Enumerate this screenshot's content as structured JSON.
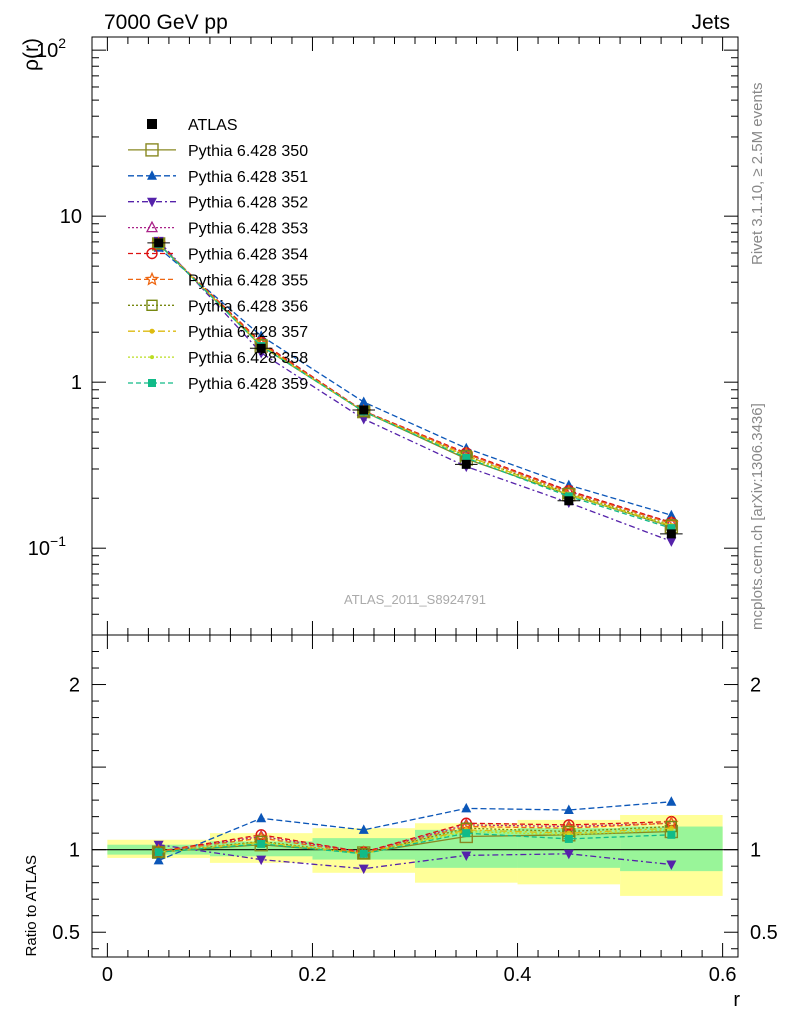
{
  "header": {
    "left": "7000 GeV pp",
    "right": "Jets",
    "side_top": "Rivet 3.1.10, ≥ 2.5M events",
    "side_bottom": "mcplots.cern.ch [arXiv:1306.3436]",
    "watermark": "ATLAS_2011_S8924791"
  },
  "chart_data": {
    "type": "line",
    "x": [
      0.05,
      0.15,
      0.25,
      0.35,
      0.45,
      0.55
    ],
    "x_edges": [
      0.0,
      0.1,
      0.2,
      0.3,
      0.4,
      0.5,
      0.6
    ],
    "xlim": [
      -0.015,
      0.615
    ],
    "xlabel": "r",
    "x_ticks": [
      "0",
      "0.2",
      "0.4",
      "0.6"
    ],
    "upper": {
      "ylabel": "ρ(r)",
      "yscale": "log",
      "ylim": [
        0.03,
        120
      ],
      "y_ticks": [
        {
          "base": "10",
          "exp": "−1",
          "value": 0.1
        },
        {
          "base": "1",
          "exp": "",
          "value": 1
        },
        {
          "base": "10",
          "exp": "",
          "value": 10
        },
        {
          "base": "10",
          "exp": "2",
          "value": 100
        }
      ]
    },
    "lower": {
      "ylabel": "Ratio to ATLAS",
      "ylim": [
        0.35,
        2.3
      ],
      "y_ticks": [
        "0.5",
        "1",
        "2"
      ],
      "y_tick_values": [
        0.5,
        1,
        2
      ],
      "band_yellow": [
        [
          0.95,
          1.06
        ],
        [
          0.92,
          1.1
        ],
        [
          0.86,
          1.13
        ],
        [
          0.8,
          1.16
        ],
        [
          0.79,
          1.18
        ],
        [
          0.72,
          1.21
        ]
      ],
      "band_green": [
        [
          0.97,
          1.03
        ],
        [
          0.96,
          1.05
        ],
        [
          0.94,
          1.07
        ],
        [
          0.89,
          1.12
        ],
        [
          0.89,
          1.13
        ],
        [
          0.87,
          1.14
        ]
      ]
    },
    "data_series": {
      "name": "ATLAS",
      "values": [
        6.9,
        1.6,
        0.68,
        0.32,
        0.193,
        0.122
      ],
      "color": "#000000"
    },
    "series": [
      {
        "name": "Pythia 6.428 350",
        "values": [
          6.8,
          1.65,
          0.665,
          0.345,
          0.21,
          0.135
        ],
        "ratio": [
          0.985,
          1.03,
          0.98,
          1.08,
          1.09,
          1.11
        ],
        "color": "#888822",
        "dash": "",
        "marker": "open-square",
        "msize": 6
      },
      {
        "name": "Pythia 6.428 351",
        "values": [
          6.45,
          1.9,
          0.76,
          0.4,
          0.24,
          0.158
        ],
        "ratio": [
          0.935,
          1.19,
          1.12,
          1.25,
          1.24,
          1.29
        ],
        "color": "#0b56b8",
        "dash": "6,3",
        "marker": "tri-up",
        "msize": 5
      },
      {
        "name": "Pythia 6.428 352",
        "values": [
          7.1,
          1.5,
          0.6,
          0.31,
          0.188,
          0.11
        ],
        "ratio": [
          1.03,
          0.94,
          0.885,
          0.965,
          0.975,
          0.91
        ],
        "color": "#5522aa",
        "dash": "6,3,2,3",
        "marker": "tri-down",
        "msize": 5
      },
      {
        "name": "Pythia 6.428 353",
        "values": [
          6.8,
          1.72,
          0.67,
          0.37,
          0.22,
          0.142
        ],
        "ratio": [
          0.99,
          1.08,
          0.985,
          1.15,
          1.14,
          1.16
        ],
        "color": "#aa2288",
        "dash": "2,2",
        "marker": "open-tri",
        "msize": 5
      },
      {
        "name": "Pythia 6.428 354",
        "values": [
          6.8,
          1.74,
          0.67,
          0.375,
          0.222,
          0.143
        ],
        "ratio": [
          0.99,
          1.09,
          0.985,
          1.16,
          1.15,
          1.17
        ],
        "color": "#dd1111",
        "dash": "5,3",
        "marker": "open-circle",
        "msize": 5
      },
      {
        "name": "Pythia 6.428 355",
        "values": [
          6.8,
          1.71,
          0.665,
          0.37,
          0.218,
          0.141
        ],
        "ratio": [
          0.99,
          1.07,
          0.98,
          1.14,
          1.13,
          1.16
        ],
        "color": "#ee6611",
        "dash": "5,3",
        "marker": "open-star",
        "msize": 6
      },
      {
        "name": "Pythia 6.428 356",
        "values": [
          6.8,
          1.68,
          0.665,
          0.36,
          0.214,
          0.138
        ],
        "ratio": [
          0.985,
          1.05,
          0.975,
          1.13,
          1.11,
          1.14
        ],
        "color": "#778811",
        "dash": "2,2",
        "marker": "open-square",
        "msize": 5
      },
      {
        "name": "Pythia 6.428 357",
        "values": [
          6.8,
          1.67,
          0.665,
          0.36,
          0.212,
          0.137
        ],
        "ratio": [
          0.985,
          1.045,
          0.975,
          1.12,
          1.1,
          1.13
        ],
        "color": "#ddbb11",
        "dash": "7,3,2,3",
        "marker": "dot",
        "msize": 2.5
      },
      {
        "name": "Pythia 6.428 358",
        "values": [
          6.8,
          1.66,
          0.665,
          0.355,
          0.21,
          0.136
        ],
        "ratio": [
          0.985,
          1.04,
          0.975,
          1.11,
          1.09,
          1.12
        ],
        "color": "#bbdd22",
        "dash": "2,2",
        "marker": "dot",
        "msize": 2
      },
      {
        "name": "Pythia 6.428 359",
        "values": [
          6.8,
          1.65,
          0.665,
          0.35,
          0.205,
          0.132
        ],
        "ratio": [
          0.985,
          1.035,
          0.975,
          1.1,
          1.065,
          1.09
        ],
        "color": "#11bb88",
        "dash": "5,3",
        "marker": "filled-square",
        "msize": 4
      }
    ]
  }
}
